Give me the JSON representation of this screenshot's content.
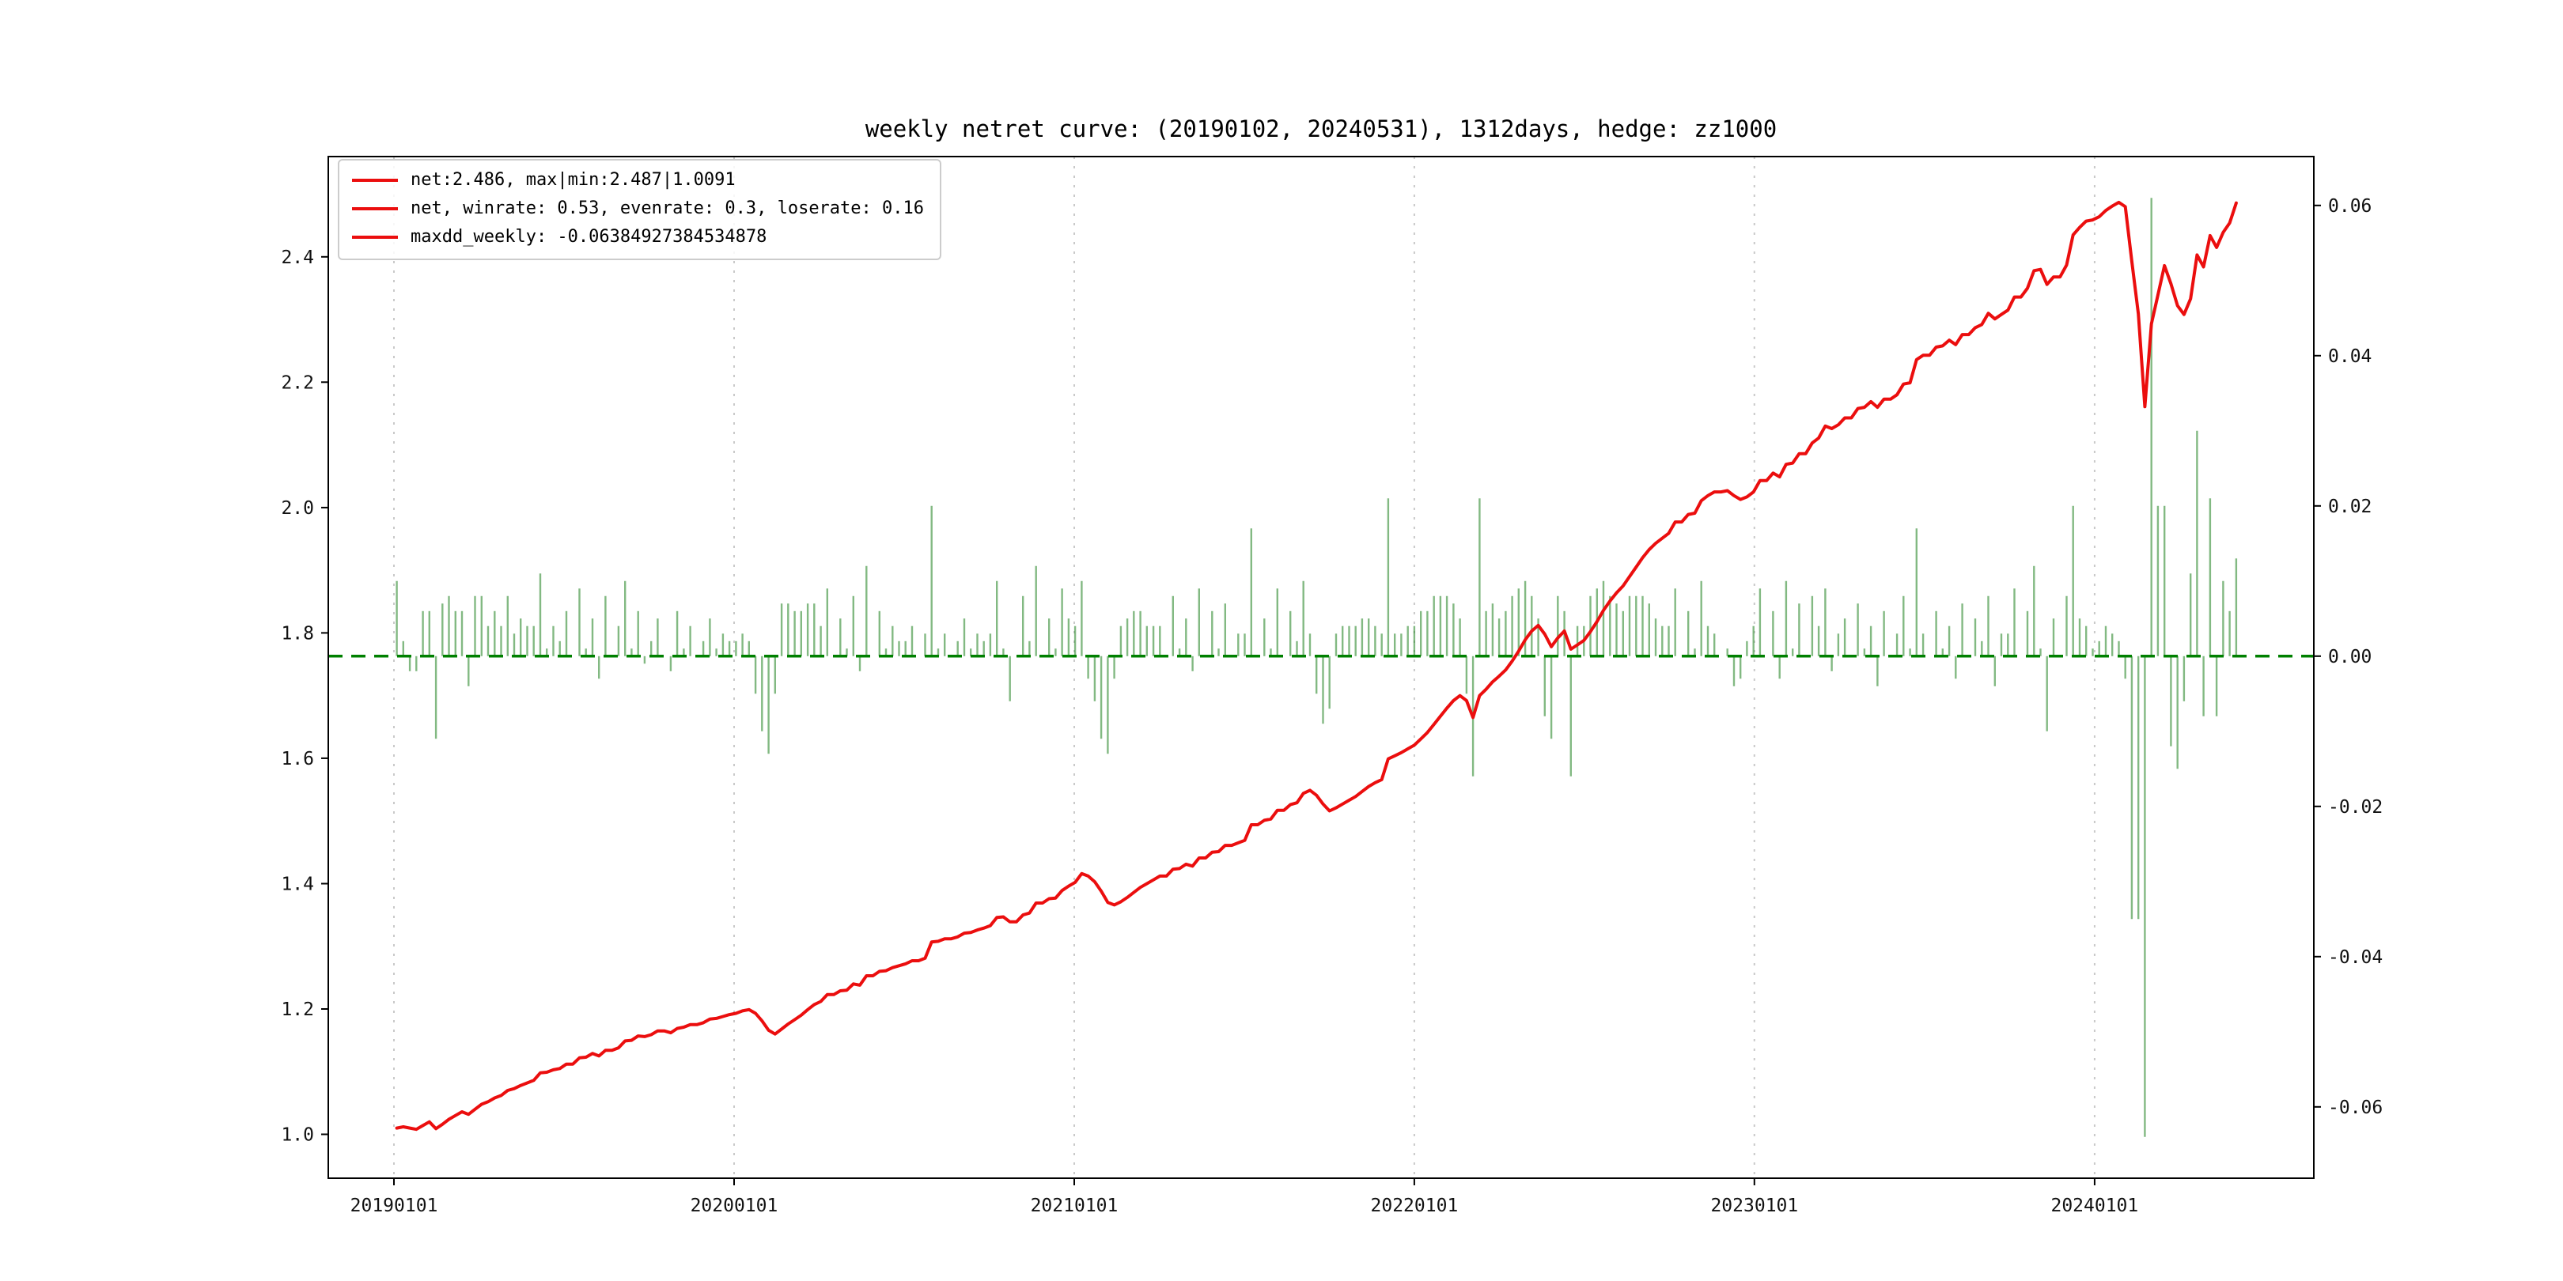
{
  "figure": {
    "title": "weekly netret curve: (20190102, 20240531), 1312days, hedge: zz1000",
    "background": "#ffffff"
  },
  "legend": {
    "items": [
      {
        "label": "net:2.486, max|min:2.487|1.0091",
        "swatch_color": "#eb0e0e"
      },
      {
        "label": "net, winrate: 0.53, evenrate: 0.3, loserate: 0.16",
        "swatch_color": "#eb0e0e"
      },
      {
        "label": "maxdd_weekly: -0.06384927384534878",
        "swatch_color": "#eb0e0e"
      }
    ]
  },
  "chart_data": {
    "type": "line",
    "subtype": "line-with-bars",
    "title": "weekly netret curve: (20190102, 20240531), 1312days, hedge: zz1000",
    "x_frequency": "weekly",
    "x_start_date": "20190102",
    "x_end_date": "20240531",
    "n_points": 283,
    "x_range_weeks": [
      -10.5,
      293.9
    ],
    "x_ticks": {
      "weeks": [
        -0.43,
        51.71,
        103.86,
        156.0,
        208.14,
        260.29
      ],
      "labels": [
        "20190101",
        "20200101",
        "20210101",
        "20220101",
        "20230101",
        "20240101"
      ]
    },
    "left_axis": {
      "range": [
        0.93,
        2.56
      ],
      "ticks": [
        1.0,
        1.2,
        1.4,
        1.6,
        1.8,
        2.0,
        2.2,
        2.4
      ],
      "labels": [
        "1.0",
        "1.2",
        "1.4",
        "1.6",
        "1.8",
        "2.0",
        "2.2",
        "2.4"
      ]
    },
    "right_axis": {
      "range": [
        -0.0695,
        0.0665
      ],
      "ticks": [
        0.06,
        0.04,
        0.02,
        0.0,
        -0.02,
        -0.04,
        -0.06
      ],
      "labels": [
        "0.06",
        "0.04",
        "0.02",
        "0.00",
        "-0.02",
        "-0.04",
        "-0.06"
      ]
    },
    "grid": {
      "axis": "x",
      "style": "dotted",
      "color": "#c9c9c9"
    },
    "zero_line": {
      "value": 0.0,
      "axis": "right",
      "style": "dashed",
      "color": "#008000"
    },
    "legend_position": "upper-left",
    "stats": {
      "net": 2.486,
      "max": 2.487,
      "min": 1.0091,
      "winrate": 0.53,
      "evenrate": 0.3,
      "loserate": 0.16,
      "maxdd_weekly": -0.06384927384534878,
      "days": 1312,
      "hedge": "zz1000"
    },
    "series": [
      {
        "name": "net",
        "type": "line",
        "axis": "left",
        "color": "#eb0e0e",
        "values": [
          1.01,
          1.012,
          1.01,
          1.008,
          1.014,
          1.02,
          1.009,
          1.016,
          1.024,
          1.03,
          1.036,
          1.032,
          1.04,
          1.048,
          1.052,
          1.058,
          1.062,
          1.07,
          1.073,
          1.078,
          1.082,
          1.086,
          1.098,
          1.099,
          1.103,
          1.105,
          1.112,
          1.112,
          1.122,
          1.123,
          1.129,
          1.125,
          1.134,
          1.134,
          1.138,
          1.149,
          1.15,
          1.157,
          1.156,
          1.159,
          1.165,
          1.165,
          1.162,
          1.169,
          1.171,
          1.175,
          1.175,
          1.178,
          1.184,
          1.185,
          1.188,
          1.191,
          1.193,
          1.197,
          1.199,
          1.193,
          1.181,
          1.166,
          1.16,
          1.168,
          1.176,
          1.183,
          1.19,
          1.199,
          1.207,
          1.212,
          1.223,
          1.223,
          1.229,
          1.23,
          1.24,
          1.238,
          1.253,
          1.253,
          1.26,
          1.261,
          1.266,
          1.269,
          1.272,
          1.277,
          1.277,
          1.281,
          1.307,
          1.308,
          1.312,
          1.312,
          1.315,
          1.321,
          1.322,
          1.326,
          1.329,
          1.333,
          1.346,
          1.347,
          1.339,
          1.339,
          1.35,
          1.353,
          1.369,
          1.369,
          1.376,
          1.377,
          1.389,
          1.396,
          1.402,
          1.416,
          1.412,
          1.403,
          1.388,
          1.37,
          1.366,
          1.371,
          1.378,
          1.386,
          1.394,
          1.4,
          1.406,
          1.412,
          1.412,
          1.423,
          1.424,
          1.431,
          1.428,
          1.441,
          1.441,
          1.45,
          1.451,
          1.461,
          1.461,
          1.465,
          1.469,
          1.494,
          1.494,
          1.501,
          1.503,
          1.517,
          1.517,
          1.526,
          1.529,
          1.544,
          1.549,
          1.541,
          1.527,
          1.516,
          1.521,
          1.527,
          1.533,
          1.539,
          1.547,
          1.555,
          1.561,
          1.566,
          1.599,
          1.604,
          1.609,
          1.615,
          1.621,
          1.631,
          1.641,
          1.654,
          1.667,
          1.68,
          1.692,
          1.7,
          1.692,
          1.665,
          1.7,
          1.71,
          1.722,
          1.731,
          1.741,
          1.755,
          1.771,
          1.789,
          1.803,
          1.812,
          1.798,
          1.778,
          1.792,
          1.803,
          1.774,
          1.781,
          1.788,
          1.802,
          1.818,
          1.836,
          1.851,
          1.864,
          1.875,
          1.89,
          1.905,
          1.92,
          1.933,
          1.943,
          1.951,
          1.959,
          1.977,
          1.977,
          1.989,
          1.991,
          2.011,
          2.019,
          2.025,
          2.025,
          2.027,
          2.019,
          2.013,
          2.017,
          2.025,
          2.043,
          2.043,
          2.055,
          2.049,
          2.069,
          2.071,
          2.086,
          2.086,
          2.103,
          2.111,
          2.13,
          2.126,
          2.132,
          2.143,
          2.143,
          2.158,
          2.16,
          2.169,
          2.16,
          2.173,
          2.173,
          2.18,
          2.197,
          2.199,
          2.236,
          2.243,
          2.243,
          2.256,
          2.258,
          2.267,
          2.26,
          2.276,
          2.276,
          2.287,
          2.292,
          2.31,
          2.301,
          2.308,
          2.315,
          2.336,
          2.336,
          2.35,
          2.378,
          2.38,
          2.356,
          2.368,
          2.368,
          2.387,
          2.435,
          2.447,
          2.457,
          2.459,
          2.464,
          2.474,
          2.481,
          2.487,
          2.48,
          2.393,
          2.309,
          2.161,
          2.293,
          2.339,
          2.386,
          2.357,
          2.322,
          2.308,
          2.333,
          2.403,
          2.384,
          2.434,
          2.415,
          2.439,
          2.454,
          2.486
        ]
      },
      {
        "name": "weekly_return",
        "type": "bar",
        "axis": "right",
        "color": "#2e8b2e",
        "values": [
          0.01,
          0.002,
          -0.002,
          -0.002,
          0.006,
          0.006,
          -0.011,
          0.007,
          0.008,
          0.006,
          0.006,
          -0.004,
          0.008,
          0.008,
          0.004,
          0.006,
          0.004,
          0.008,
          0.003,
          0.005,
          0.004,
          0.004,
          0.011,
          0.001,
          0.004,
          0.002,
          0.006,
          0.0,
          0.009,
          0.001,
          0.005,
          -0.003,
          0.008,
          0.0,
          0.004,
          0.01,
          0.001,
          0.006,
          -0.001,
          0.002,
          0.005,
          0.0,
          -0.002,
          0.006,
          0.001,
          0.004,
          0.0,
          0.002,
          0.005,
          0.001,
          0.003,
          0.002,
          0.002,
          0.003,
          0.002,
          -0.005,
          -0.01,
          -0.013,
          -0.005,
          0.007,
          0.007,
          0.006,
          0.006,
          0.007,
          0.007,
          0.004,
          0.009,
          0.0,
          0.005,
          0.001,
          0.008,
          -0.002,
          0.012,
          0.0,
          0.006,
          0.001,
          0.004,
          0.002,
          0.002,
          0.004,
          0.0,
          0.003,
          0.02,
          0.001,
          0.003,
          0.0,
          0.002,
          0.005,
          0.001,
          0.003,
          0.002,
          0.003,
          0.01,
          0.001,
          -0.006,
          0.0,
          0.008,
          0.002,
          0.012,
          0.0,
          0.005,
          0.001,
          0.009,
          0.005,
          0.004,
          0.01,
          -0.003,
          -0.006,
          -0.011,
          -0.013,
          -0.003,
          0.004,
          0.005,
          0.006,
          0.006,
          0.004,
          0.004,
          0.004,
          0.0,
          0.008,
          0.001,
          0.005,
          -0.002,
          0.009,
          0.0,
          0.006,
          0.001,
          0.007,
          0.0,
          0.003,
          0.003,
          0.017,
          0.0,
          0.005,
          0.001,
          0.009,
          0.0,
          0.006,
          0.002,
          0.01,
          0.003,
          -0.005,
          -0.009,
          -0.007,
          0.003,
          0.004,
          0.004,
          0.004,
          0.005,
          0.005,
          0.004,
          0.003,
          0.021,
          0.003,
          0.003,
          0.004,
          0.004,
          0.006,
          0.006,
          0.008,
          0.008,
          0.008,
          0.007,
          0.005,
          -0.005,
          -0.016,
          0.021,
          0.006,
          0.007,
          0.005,
          0.006,
          0.008,
          0.009,
          0.01,
          0.008,
          0.005,
          -0.008,
          -0.011,
          0.008,
          0.006,
          -0.016,
          0.004,
          0.004,
          0.008,
          0.009,
          0.01,
          0.008,
          0.007,
          0.006,
          0.008,
          0.008,
          0.008,
          0.007,
          0.005,
          0.004,
          0.004,
          0.009,
          0.0,
          0.006,
          0.001,
          0.01,
          0.004,
          0.003,
          0.0,
          0.001,
          -0.004,
          -0.003,
          0.002,
          0.004,
          0.009,
          0.0,
          0.006,
          -0.003,
          0.01,
          0.001,
          0.007,
          0.0,
          0.008,
          0.004,
          0.009,
          -0.002,
          0.003,
          0.005,
          0.0,
          0.007,
          0.001,
          0.004,
          -0.004,
          0.006,
          0.0,
          0.003,
          0.008,
          0.001,
          0.017,
          0.003,
          0.0,
          0.006,
          0.001,
          0.004,
          -0.003,
          0.007,
          0.0,
          0.005,
          0.002,
          0.008,
          -0.004,
          0.003,
          0.003,
          0.009,
          0.0,
          0.006,
          0.012,
          0.001,
          -0.01,
          0.005,
          0.0,
          0.008,
          0.02,
          0.005,
          0.004,
          0.001,
          0.002,
          0.004,
          0.003,
          0.002,
          -0.003,
          -0.035,
          -0.035,
          -0.064,
          0.061,
          0.02,
          0.02,
          -0.012,
          -0.015,
          -0.006,
          0.011,
          0.03,
          -0.008,
          0.021,
          -0.008,
          0.01,
          0.006,
          0.013
        ]
      }
    ]
  }
}
